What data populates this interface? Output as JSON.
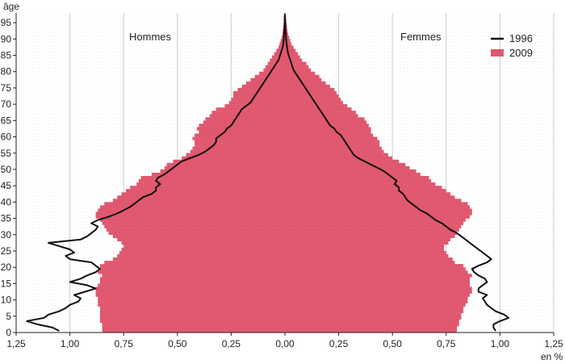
{
  "chart_data": {
    "type": "bar",
    "orientation": "horizontal-population-pyramid",
    "title": "",
    "ylabel": "âge",
    "xlabel": "en %",
    "left_label": "Hommes",
    "right_label": "Femmes",
    "xlim": [
      -1.25,
      1.25
    ],
    "ylim": [
      0,
      98
    ],
    "x_ticks": [
      -1.25,
      -1.0,
      -0.75,
      -0.5,
      -0.25,
      0,
      0.25,
      0.5,
      0.75,
      1.0,
      1.25
    ],
    "x_tick_labels": [
      "1,25",
      "1,00",
      "0,75",
      "0,50",
      "0,25",
      "0,00",
      "0,25",
      "0,50",
      "0,75",
      "1,00",
      "1,25"
    ],
    "y_ticks": [
      0,
      5,
      10,
      15,
      20,
      25,
      30,
      35,
      40,
      45,
      50,
      55,
      60,
      65,
      70,
      75,
      80,
      85,
      90,
      95
    ],
    "y_tick_labels": [
      "0",
      "5",
      "10",
      "15",
      "20",
      "25",
      "30",
      "35",
      "40",
      "45",
      "50",
      "55",
      "60",
      "65",
      "70",
      "75",
      "80",
      "85",
      "90",
      "95"
    ],
    "grid": "vertical",
    "legend_position": "top-right",
    "colors": {
      "bars_2009": "#e0586f",
      "line_1996": "#111111",
      "grid": "#cccccc",
      "center": "#999999"
    },
    "series": [
      {
        "name": "2009",
        "kind": "bars",
        "ages": [
          0,
          1,
          2,
          3,
          4,
          5,
          6,
          7,
          8,
          9,
          10,
          11,
          12,
          13,
          14,
          15,
          16,
          17,
          18,
          19,
          20,
          21,
          22,
          23,
          24,
          25,
          26,
          27,
          28,
          29,
          30,
          31,
          32,
          33,
          34,
          35,
          36,
          37,
          38,
          39,
          40,
          41,
          42,
          43,
          44,
          45,
          46,
          47,
          48,
          49,
          50,
          51,
          52,
          53,
          54,
          55,
          56,
          57,
          58,
          59,
          60,
          61,
          62,
          63,
          64,
          65,
          66,
          67,
          68,
          69,
          70,
          71,
          72,
          73,
          74,
          75,
          76,
          77,
          78,
          79,
          80,
          81,
          82,
          83,
          84,
          85,
          86,
          87,
          88,
          89,
          90,
          91,
          92,
          93,
          94,
          95,
          96,
          97
        ],
        "men": [
          0.85,
          0.85,
          0.85,
          0.86,
          0.86,
          0.86,
          0.86,
          0.86,
          0.87,
          0.87,
          0.87,
          0.88,
          0.88,
          0.88,
          0.87,
          0.86,
          0.86,
          0.85,
          0.87,
          0.86,
          0.86,
          0.84,
          0.8,
          0.78,
          0.77,
          0.76,
          0.75,
          0.76,
          0.78,
          0.8,
          0.82,
          0.83,
          0.84,
          0.85,
          0.86,
          0.88,
          0.88,
          0.87,
          0.86,
          0.84,
          0.8,
          0.78,
          0.76,
          0.74,
          0.72,
          0.69,
          0.68,
          0.67,
          0.62,
          0.58,
          0.56,
          0.55,
          0.52,
          0.48,
          0.46,
          0.44,
          0.43,
          0.42,
          0.42,
          0.43,
          0.42,
          0.4,
          0.41,
          0.4,
          0.38,
          0.37,
          0.35,
          0.34,
          0.32,
          0.28,
          0.26,
          0.25,
          0.24,
          0.24,
          0.22,
          0.2,
          0.18,
          0.16,
          0.14,
          0.12,
          0.1,
          0.09,
          0.08,
          0.07,
          0.06,
          0.05,
          0.04,
          0.03,
          0.025,
          0.02,
          0.015,
          0.012,
          0.01,
          0.008,
          0.006,
          0.005,
          0.004,
          0.003
        ],
        "women": [
          0.8,
          0.8,
          0.81,
          0.81,
          0.82,
          0.82,
          0.83,
          0.83,
          0.84,
          0.85,
          0.85,
          0.86,
          0.87,
          0.87,
          0.86,
          0.86,
          0.86,
          0.87,
          0.85,
          0.84,
          0.83,
          0.79,
          0.78,
          0.76,
          0.75,
          0.74,
          0.74,
          0.76,
          0.77,
          0.79,
          0.8,
          0.81,
          0.82,
          0.83,
          0.84,
          0.86,
          0.87,
          0.87,
          0.86,
          0.85,
          0.82,
          0.79,
          0.77,
          0.75,
          0.73,
          0.7,
          0.68,
          0.67,
          0.63,
          0.61,
          0.58,
          0.56,
          0.53,
          0.5,
          0.48,
          0.46,
          0.45,
          0.44,
          0.44,
          0.43,
          0.41,
          0.4,
          0.4,
          0.39,
          0.38,
          0.37,
          0.34,
          0.33,
          0.31,
          0.29,
          0.27,
          0.26,
          0.25,
          0.24,
          0.23,
          0.21,
          0.19,
          0.17,
          0.16,
          0.14,
          0.12,
          0.11,
          0.1,
          0.08,
          0.07,
          0.06,
          0.05,
          0.04,
          0.03,
          0.025,
          0.02,
          0.015,
          0.012,
          0.01,
          0.008,
          0.006,
          0.004,
          0.003
        ]
      },
      {
        "name": "1996",
        "kind": "line",
        "ages": [
          0,
          1,
          2,
          3,
          4,
          5,
          6,
          7,
          8,
          9,
          10,
          11,
          12,
          13,
          14,
          15,
          16,
          17,
          18,
          19,
          20,
          21,
          22,
          23,
          24,
          25,
          26,
          27,
          28,
          29,
          30,
          31,
          32,
          33,
          34,
          35,
          36,
          37,
          38,
          39,
          40,
          41,
          42,
          43,
          44,
          45,
          46,
          47,
          48,
          49,
          50,
          51,
          52,
          53,
          54,
          55,
          56,
          57,
          58,
          59,
          60,
          61,
          62,
          63,
          64,
          65,
          66,
          67,
          68,
          69,
          70,
          71,
          72,
          73,
          74,
          75,
          76,
          77,
          78,
          79,
          80,
          81,
          82,
          83,
          84,
          85,
          86,
          87,
          88,
          89,
          90,
          91,
          92,
          93,
          94,
          95,
          96,
          97
        ],
        "men": [
          1.05,
          1.08,
          1.15,
          1.2,
          1.12,
          1.1,
          1.05,
          1.02,
          1.0,
          0.96,
          0.95,
          0.98,
          0.93,
          0.88,
          0.92,
          1.0,
          0.95,
          0.92,
          0.88,
          0.86,
          0.88,
          0.9,
          1.0,
          1.02,
          0.98,
          1.0,
          1.05,
          1.1,
          0.95,
          0.92,
          0.9,
          0.88,
          0.87,
          0.9,
          0.87,
          0.82,
          0.78,
          0.75,
          0.72,
          0.7,
          0.68,
          0.66,
          0.62,
          0.6,
          0.6,
          0.58,
          0.6,
          0.59,
          0.56,
          0.54,
          0.52,
          0.5,
          0.48,
          0.44,
          0.4,
          0.37,
          0.35,
          0.33,
          0.32,
          0.32,
          0.3,
          0.28,
          0.27,
          0.25,
          0.24,
          0.23,
          0.22,
          0.21,
          0.2,
          0.18,
          0.16,
          0.15,
          0.14,
          0.13,
          0.12,
          0.11,
          0.1,
          0.09,
          0.08,
          0.07,
          0.06,
          0.05,
          0.04,
          0.03,
          0.025,
          0.02,
          0.015,
          0.01,
          0.008,
          0.006,
          0.005,
          0.004,
          0.003,
          0.002,
          0.002,
          0.001,
          0.001,
          0.0
        ],
        "women": [
          0.98,
          0.97,
          0.97,
          1.0,
          1.04,
          1.02,
          0.98,
          0.96,
          0.94,
          0.93,
          0.92,
          0.94,
          0.9,
          0.9,
          0.92,
          0.94,
          0.93,
          0.9,
          0.88,
          0.87,
          0.9,
          0.94,
          0.96,
          0.94,
          0.92,
          0.9,
          0.88,
          0.86,
          0.84,
          0.82,
          0.8,
          0.77,
          0.75,
          0.73,
          0.7,
          0.68,
          0.66,
          0.63,
          0.61,
          0.59,
          0.57,
          0.56,
          0.55,
          0.53,
          0.53,
          0.51,
          0.52,
          0.5,
          0.48,
          0.46,
          0.43,
          0.4,
          0.37,
          0.34,
          0.32,
          0.31,
          0.3,
          0.29,
          0.28,
          0.27,
          0.26,
          0.24,
          0.23,
          0.21,
          0.2,
          0.19,
          0.18,
          0.17,
          0.16,
          0.15,
          0.14,
          0.13,
          0.12,
          0.11,
          0.1,
          0.09,
          0.08,
          0.07,
          0.06,
          0.05,
          0.04,
          0.035,
          0.03,
          0.025,
          0.02,
          0.015,
          0.012,
          0.01,
          0.008,
          0.006,
          0.005,
          0.004,
          0.003,
          0.002,
          0.002,
          0.001,
          0.001,
          0.0
        ]
      }
    ]
  }
}
